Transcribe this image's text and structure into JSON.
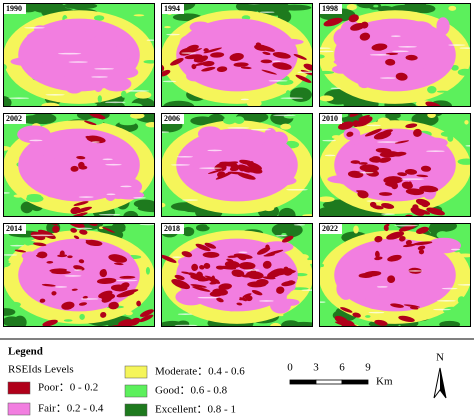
{
  "panels": [
    {
      "year": "1990"
    },
    {
      "year": "1994"
    },
    {
      "year": "1998"
    },
    {
      "year": "2002"
    },
    {
      "year": "2006"
    },
    {
      "year": "2010"
    },
    {
      "year": "2014"
    },
    {
      "year": "2018"
    },
    {
      "year": "2022"
    }
  ],
  "legend": {
    "title": "Legend",
    "subtitle": "RSEIds Levels",
    "items": [
      {
        "label": "Poor：0 - 0.2",
        "color": "#b0001a"
      },
      {
        "label": "Fair：0.2 - 0.4",
        "color": "#f27ee0"
      },
      {
        "label": "Moderate：0.4 - 0.6",
        "color": "#f5f55a"
      },
      {
        "label": "Good：0.6 - 0.8",
        "color": "#5cf05c"
      },
      {
        "label": "Excellent：0.8 - 1",
        "color": "#1e7a1e"
      }
    ]
  },
  "scale_bar": {
    "labels": [
      "0",
      "3",
      "6",
      "9"
    ],
    "unit": "Km"
  },
  "north": "N"
}
